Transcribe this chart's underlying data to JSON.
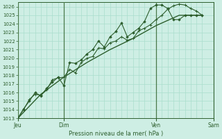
{
  "xlabel": "Pression niveau de la mer( hPa )",
  "bg_color": "#ceeee4",
  "grid_color": "#aaddcc",
  "line_color": "#2d5e2d",
  "vline_color": "#4a7a4a",
  "ylim": [
    1013,
    1026.5
  ],
  "ytick_min": 1013,
  "ytick_max": 1026,
  "xlim_max": 192,
  "day_labels": [
    "Jeu",
    "Dim",
    "Ven",
    "Sam"
  ],
  "day_positions": [
    0,
    48,
    144,
    204
  ],
  "xtick_minor_step": 6,
  "series1_x": [
    0,
    6,
    12,
    18,
    24,
    30,
    36,
    42,
    48,
    54,
    60,
    66,
    72,
    78,
    84,
    90,
    96,
    102,
    108,
    114,
    120,
    126,
    132,
    138,
    144,
    150,
    156,
    162,
    168,
    174,
    180,
    186,
    192
  ],
  "series1_y": [
    1013.0,
    1014.0,
    1015.2,
    1015.8,
    1015.7,
    1016.3,
    1017.5,
    1017.7,
    1017.8,
    1018.7,
    1018.3,
    1019.5,
    1020.0,
    1020.2,
    1021.2,
    1021.1,
    1021.8,
    1022.0,
    1022.5,
    1022.1,
    1022.3,
    1023.2,
    1023.5,
    1023.9,
    1024.5,
    1025.0,
    1025.7,
    1026.1,
    1026.3,
    1026.2,
    1025.8,
    1025.5,
    1025.0
  ],
  "series2_x": [
    0,
    6,
    12,
    18,
    24,
    30,
    36,
    42,
    48,
    54,
    60,
    66,
    72,
    78,
    84,
    90,
    96,
    102,
    108,
    114,
    120,
    126,
    132,
    138,
    144,
    150,
    156,
    162,
    168,
    174,
    180,
    186,
    192
  ],
  "series2_y": [
    1013.0,
    1014.1,
    1015.0,
    1016.0,
    1015.6,
    1016.5,
    1017.2,
    1017.8,
    1016.8,
    1019.5,
    1019.4,
    1019.8,
    1020.5,
    1021.0,
    1022.0,
    1021.3,
    1022.5,
    1023.1,
    1024.1,
    1022.5,
    1023.0,
    1023.5,
    1024.3,
    1025.8,
    1026.2,
    1026.2,
    1025.8,
    1024.5,
    1024.5,
    1025.0,
    1025.0,
    1025.0,
    1025.0
  ],
  "series3_x": [
    0,
    24,
    48,
    72,
    96,
    120,
    144,
    168,
    192
  ],
  "series3_y": [
    1013.0,
    1015.8,
    1017.8,
    1019.5,
    1021.0,
    1022.3,
    1023.8,
    1025.0,
    1025.0
  ]
}
